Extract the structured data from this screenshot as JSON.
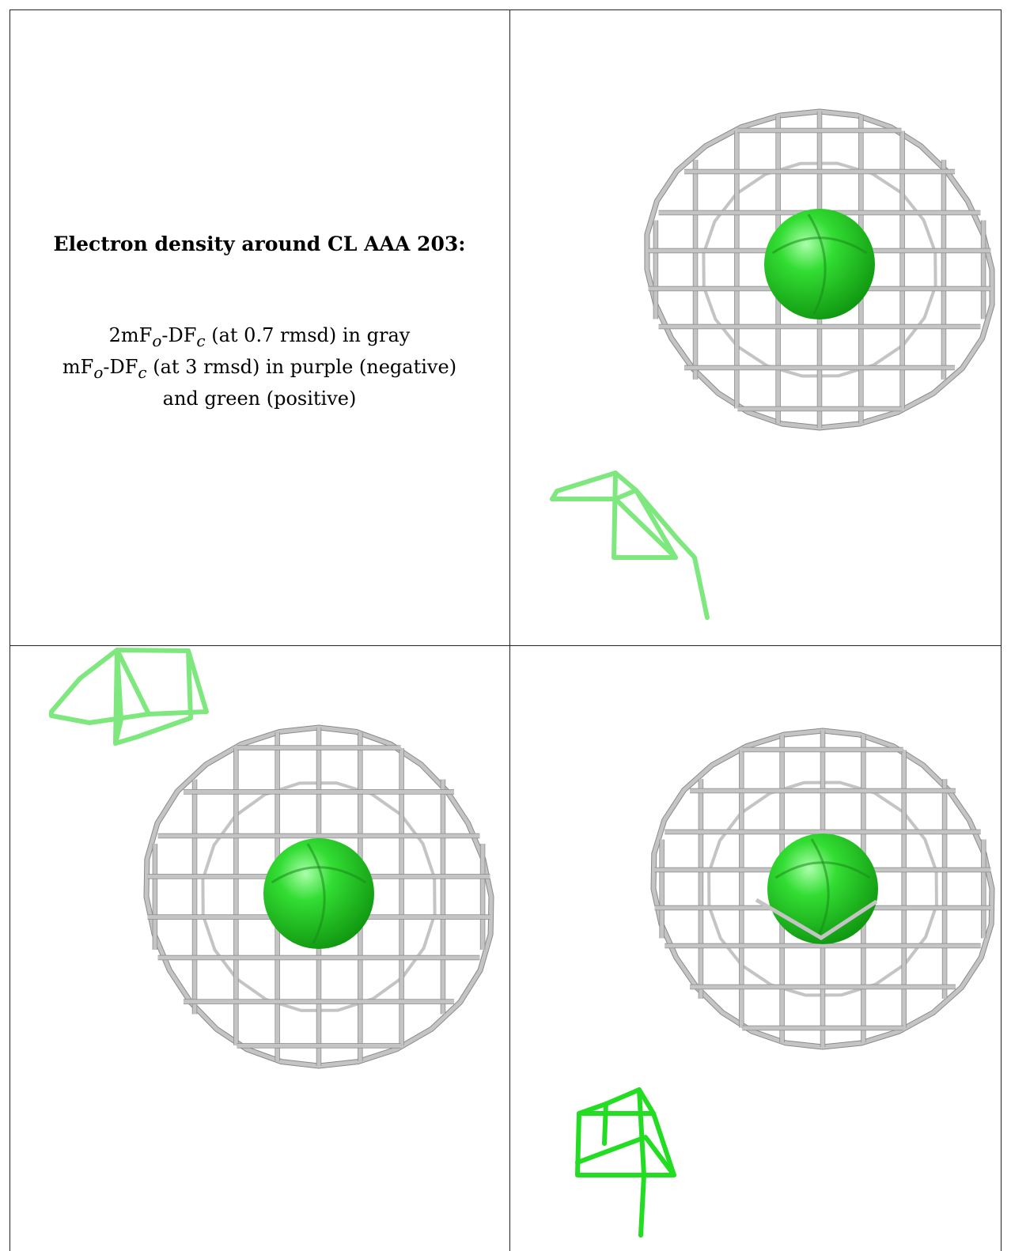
{
  "caption": {
    "title": "Electron density around CL AAA 203:",
    "lines": [
      {
        "pre": "2mF",
        "sub1": "o",
        "mid": "-DF",
        "sub2": "c",
        "post": " (at 0.7 rmsd) in gray"
      },
      {
        "pre": "mF",
        "sub1": "o",
        "mid": "-DF",
        "sub2": "c",
        "post": " (at 3 rmsd) in purple (negative)"
      },
      {
        "pre": "",
        "sub1": "",
        "mid": "",
        "sub2": "",
        "post": "and green (positive)"
      }
    ]
  },
  "colors": {
    "cage": "#c4c4c4",
    "cage_dark": "#8a8a8a",
    "atom": "#33dd33",
    "atom_dark": "#119911",
    "positive_density": "#22dd22",
    "positive_density_light": "#7ee87e"
  },
  "panels": [
    {
      "name": "view-top-right",
      "atom": "chloride-ion"
    },
    {
      "name": "view-bottom-left",
      "atom": "chloride-ion"
    },
    {
      "name": "view-bottom-right",
      "atom": "chloride-ion"
    }
  ]
}
